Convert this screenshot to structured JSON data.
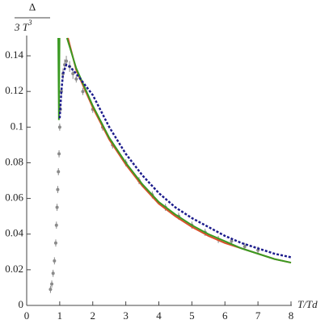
{
  "chart_data": {
    "type": "line",
    "ylabel_numerator": "Δ",
    "ylabel_denominator": "3 T",
    "ylabel_exponent": "3",
    "xlabel": "T/Td",
    "xlim": [
      0,
      8
    ],
    "xticks": [
      0,
      1,
      2,
      3,
      4,
      5,
      6,
      7,
      8
    ],
    "ylim": [
      0,
      0.15
    ],
    "yticks": [
      0,
      0.02,
      0.04,
      0.06,
      0.08,
      0.1,
      0.12,
      0.14
    ],
    "points": {
      "color": "#8a8a8a",
      "x": [
        0.72,
        0.76,
        0.8,
        0.84,
        0.88,
        0.9,
        0.92,
        0.94,
        0.96,
        0.98,
        1.0,
        1.02,
        1.05,
        1.1,
        1.15,
        1.2,
        1.3,
        1.4,
        1.5,
        1.7,
        2.0,
        2.3,
        2.6,
        3.0,
        3.4,
        3.8,
        4.2,
        4.6,
        5.0,
        5.4,
        5.8,
        6.2,
        6.6,
        7.0
      ],
      "values": [
        0.009,
        0.012,
        0.018,
        0.025,
        0.035,
        0.045,
        0.055,
        0.065,
        0.075,
        0.085,
        0.1,
        0.11,
        0.12,
        0.13,
        0.135,
        0.137,
        0.134,
        0.13,
        0.127,
        0.12,
        0.11,
        0.1,
        0.09,
        0.08,
        0.07,
        0.062,
        0.055,
        0.05,
        0.045,
        0.041,
        0.037,
        0.036,
        0.033,
        0.031
      ],
      "errors": [
        0.002,
        0.002,
        0.002,
        0.002,
        0.002,
        0.002,
        0.002,
        0.002,
        0.002,
        0.002,
        0.002,
        0.002,
        0.002,
        0.003,
        0.003,
        0.003,
        0.003,
        0.003,
        0.002,
        0.002,
        0.002,
        0.002,
        0.002,
        0.002,
        0.002,
        0.002,
        0.002,
        0.002,
        0.002,
        0.002,
        0.002,
        0.002,
        0.002,
        0.002
      ]
    },
    "series": [
      {
        "color": "#d9502c",
        "style": "solid",
        "x": [
          1.25,
          1.5,
          2,
          2.5,
          3,
          3.5,
          4,
          4.5,
          5,
          5.5,
          6,
          6.5,
          7,
          7.5,
          8
        ],
        "values": [
          0.15,
          0.132,
          0.111,
          0.093,
          0.079,
          0.067,
          0.057,
          0.05,
          0.044,
          0.039,
          0.035,
          0.032,
          0.029,
          0.026,
          0.024
        ]
      },
      {
        "color": "#3a9a22",
        "style": "solid",
        "x": [
          0.955,
          0.975,
          0.995,
          1.2,
          1.22,
          1.5,
          2,
          2.5,
          3,
          3.5,
          4,
          4.5,
          5,
          5.5,
          6,
          6.5,
          7,
          7.5,
          8
        ],
        "values": [
          0.15,
          0.104,
          0.15,
          null,
          0.15,
          0.133,
          0.112,
          0.094,
          0.08,
          0.068,
          0.058,
          0.051,
          0.045,
          0.04,
          0.036,
          0.032,
          0.029,
          0.026,
          0.024
        ]
      },
      {
        "color": "#1c1c8c",
        "style": "dotted",
        "x": [
          1.0,
          1.05,
          1.1,
          1.2,
          1.3,
          1.5,
          2,
          2.5,
          3,
          3.5,
          4,
          4.5,
          5,
          5.5,
          6,
          6.5,
          7,
          7.5,
          8
        ],
        "values": [
          0.105,
          0.12,
          0.13,
          0.135,
          0.134,
          0.13,
          0.118,
          0.1,
          0.085,
          0.073,
          0.063,
          0.055,
          0.049,
          0.044,
          0.039,
          0.035,
          0.032,
          0.029,
          0.027
        ]
      }
    ]
  }
}
